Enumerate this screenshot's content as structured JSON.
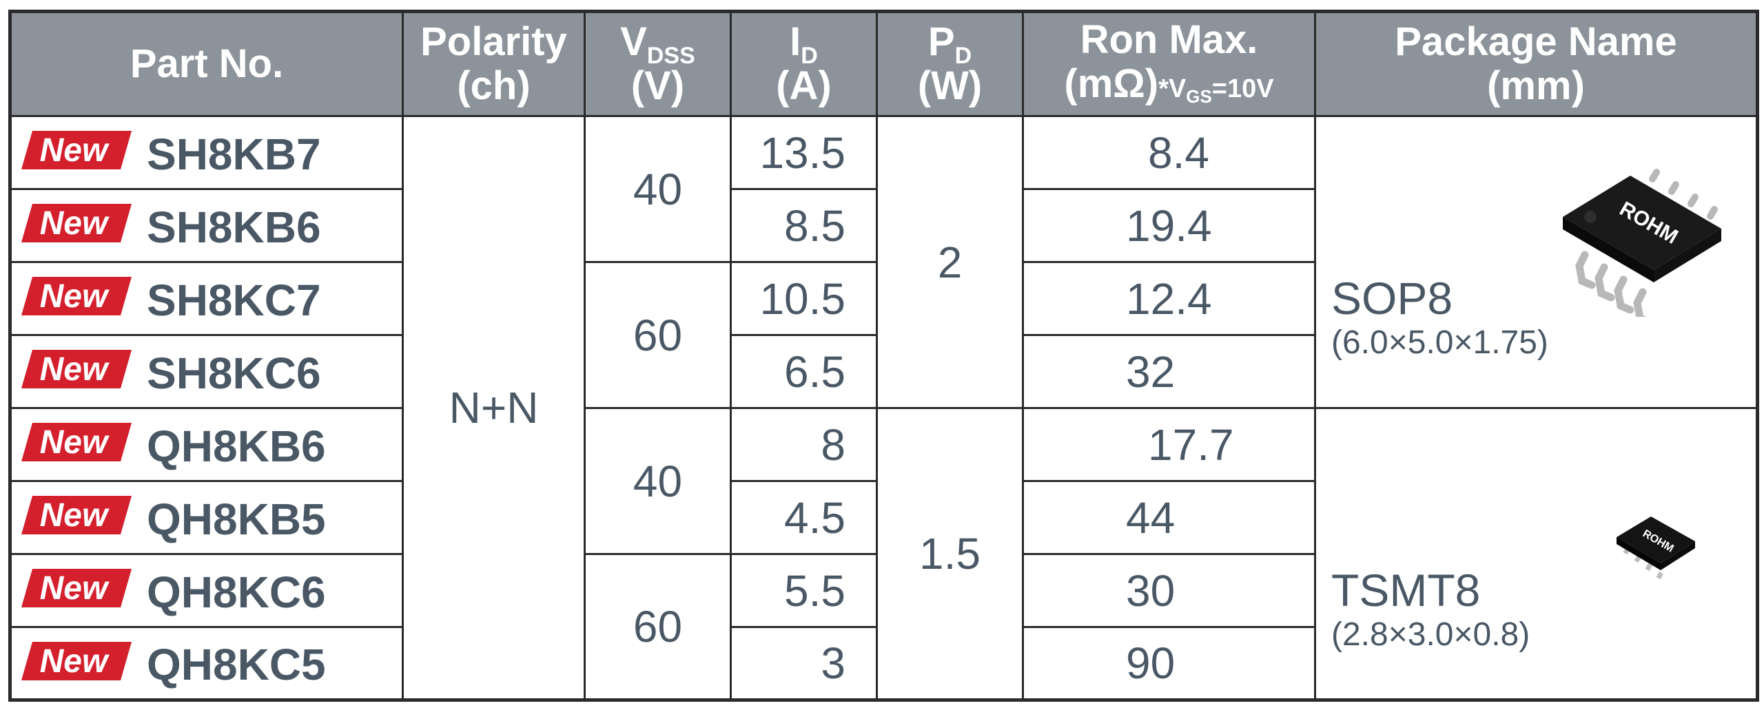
{
  "colors": {
    "header_bg": "#8c939b",
    "header_text": "#ffffff",
    "body_text": "#4a5866",
    "new_badge": "#d41f2c",
    "grid": "#2a2a2a"
  },
  "headers": {
    "part_no": "Part No.",
    "polarity_1": "Polarity",
    "polarity_2": "(ch)",
    "vdss_main": "V",
    "vdss_sub": "DSS",
    "vdss_unit": "(V)",
    "id_main": "I",
    "id_sub": "D",
    "id_unit": "(A)",
    "pd_main": "P",
    "pd_sub": "D",
    "pd_unit": "(W)",
    "ron_1": "Ron Max.",
    "ron_unit": "(mΩ)",
    "ron_cond_pre": "*V",
    "ron_cond_sub": "GS",
    "ron_cond_post": "=10V",
    "pkg_1": "Package Name",
    "pkg_2": "(mm)"
  },
  "badge_label": "New",
  "rows": [
    {
      "part": "SH8KB7",
      "id": "13.5",
      "ron": "8.4"
    },
    {
      "part": "SH8KB6",
      "id": "8.5",
      "ron": "19.4"
    },
    {
      "part": "SH8KC7",
      "id": "10.5",
      "ron": "12.4"
    },
    {
      "part": "SH8KC6",
      "id": "6.5",
      "ron": "32"
    },
    {
      "part": "QH8KB6",
      "id": "8",
      "ron": "17.7"
    },
    {
      "part": "QH8KB5",
      "id": "4.5",
      "ron": "44"
    },
    {
      "part": "QH8KC6",
      "id": "5.5",
      "ron": "30"
    },
    {
      "part": "QH8KC5",
      "id": "3",
      "ron": "90"
    }
  ],
  "polarity": "N+N",
  "vdss": [
    "40",
    "60",
    "40",
    "60"
  ],
  "pd": [
    "2",
    "1.5"
  ],
  "packages": [
    {
      "name": "SOP8",
      "dims": "(6.0×5.0×1.75)",
      "chip_logo": "ROHM"
    },
    {
      "name": "TSMT8",
      "dims": "(2.8×3.0×0.8)",
      "chip_logo": "ROHM"
    }
  ]
}
